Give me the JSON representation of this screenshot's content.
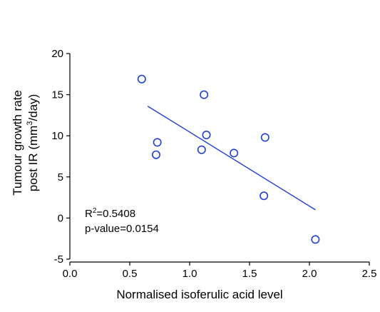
{
  "chart_data": {
    "type": "scatter",
    "xlabel": "Normalised isoferulic acid level",
    "ylabel_line1": "Tumour growth rate",
    "ylabel_line2_prefix": "post IR (mm",
    "ylabel_line2_sup": "3",
    "ylabel_line2_suffix": "/day)",
    "xlim": [
      0,
      2.5
    ],
    "ylim": [
      -5,
      20
    ],
    "xticks": [
      "0.0",
      "0.5",
      "1.0",
      "1.5",
      "2.0",
      "2.5"
    ],
    "yticks": [
      "-5",
      "0",
      "5",
      "10",
      "15",
      "20"
    ],
    "x": [
      0.6,
      0.72,
      0.73,
      1.1,
      1.12,
      1.14,
      1.37,
      1.62,
      1.63,
      2.05
    ],
    "y": [
      16.9,
      7.7,
      9.2,
      8.3,
      15.0,
      10.1,
      7.9,
      2.7,
      9.8,
      -2.6
    ],
    "regression": {
      "x": [
        0.65,
        2.05
      ],
      "y": [
        13.6,
        1.0
      ]
    },
    "annotation": {
      "r2_prefix": "R",
      "r2_sup": "2",
      "r2_value": "=0.5408",
      "p_value": "p-value=0.0154"
    },
    "colors": {
      "marker": "#1f3fd6",
      "line": "#1f3fd6",
      "axis": "#000000"
    },
    "grid": false,
    "legend": "none"
  }
}
